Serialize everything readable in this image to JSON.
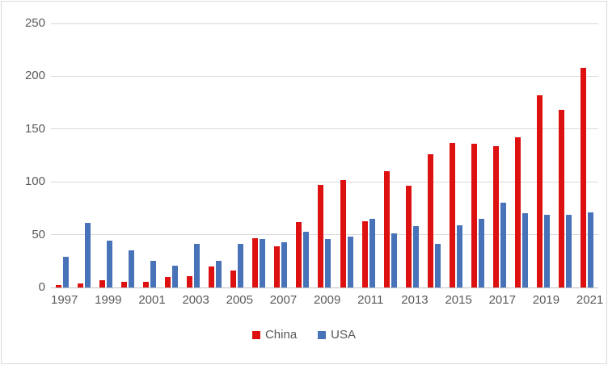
{
  "chart_data": {
    "type": "bar",
    "title": "",
    "xlabel": "",
    "ylabel": "",
    "ylim": [
      0,
      250
    ],
    "yticks": [
      0,
      50,
      100,
      150,
      200,
      250
    ],
    "grid": true,
    "legend_position": "bottom-center",
    "categories": [
      "1997",
      "1998",
      "1999",
      "2000",
      "2001",
      "2002",
      "2003",
      "2004",
      "2005",
      "2006",
      "2007",
      "2008",
      "2009",
      "2010",
      "2011",
      "2012",
      "2013",
      "2014",
      "2015",
      "2016",
      "2017",
      "2018",
      "2019",
      "2020",
      "2021"
    ],
    "xtick_labels_shown": [
      "1997",
      "1999",
      "2001",
      "2003",
      "2005",
      "2007",
      "2009",
      "2011",
      "2013",
      "2015",
      "2017",
      "2019",
      "2021"
    ],
    "series": [
      {
        "name": "China",
        "color": "#de1111",
        "values": [
          2,
          4,
          7,
          5,
          5,
          10,
          11,
          20,
          16,
          47,
          39,
          62,
          97,
          102,
          63,
          110,
          96,
          126,
          137,
          136,
          134,
          142,
          182,
          168,
          208
        ]
      },
      {
        "name": "USA",
        "color": "#4973b8",
        "values": [
          29,
          61,
          44,
          35,
          25,
          21,
          41,
          25,
          41,
          46,
          43,
          53,
          46,
          48,
          65,
          51,
          58,
          41,
          59,
          65,
          80,
          70,
          69,
          69,
          71
        ]
      }
    ],
    "colors": {
      "gridline": "#d9d9d9",
      "axis_line": "#c3c3c3",
      "tick_text": "#595959",
      "background": "#ffffff",
      "border": "#d9d9d9"
    }
  },
  "legend": {
    "china_label": "China",
    "usa_label": "USA"
  }
}
